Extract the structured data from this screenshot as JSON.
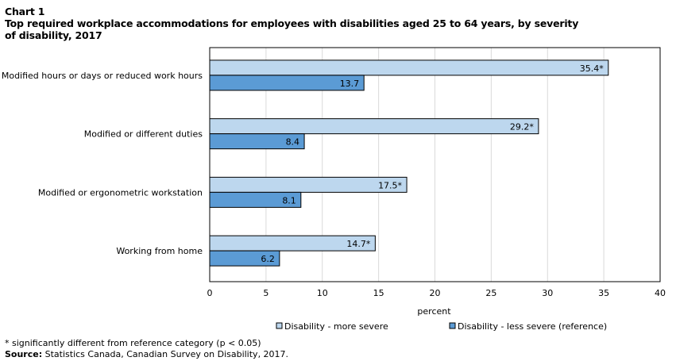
{
  "chart_data": {
    "type": "bar",
    "orientation": "horizontal",
    "chart_number": "Chart 1",
    "title": "Top required workplace accommodations for employees with disabilities aged 25 to 64 years, by severity of disability, 2017",
    "title_lines": [
      "Top required workplace accommodations for employees with disabilities aged 25 to 64 years, by severity",
      "of disability, 2017"
    ],
    "categories": [
      "Modified hours or days or reduced work hours",
      "Modified or different duties",
      "Modified or ergonometric workstation",
      "Working from home"
    ],
    "series": [
      {
        "name": "Disability - more severe",
        "color": "#bdd7ee",
        "values": [
          35.4,
          29.2,
          17.5,
          14.7
        ],
        "labels": [
          "35.4*",
          "29.2*",
          "17.5*",
          "14.7*"
        ]
      },
      {
        "name": "Disability - less severe (reference)",
        "color": "#5b9bd5",
        "values": [
          13.7,
          8.4,
          8.1,
          6.2
        ],
        "labels": [
          "13.7",
          "8.4",
          "8.1",
          "6.2"
        ]
      }
    ],
    "xlabel": "percent",
    "ylabel": "",
    "xlim": [
      0,
      40
    ],
    "xticks": [
      0,
      5,
      10,
      15,
      20,
      25,
      30,
      35,
      40
    ],
    "grid": true,
    "legend_position": "bottom"
  },
  "footnote": {
    "significance": "* significantly different from reference category (p < 0.05)",
    "source_label": "Source:",
    "source_text": " Statistics Canada, Canadian Survey on Disability, 2017."
  }
}
